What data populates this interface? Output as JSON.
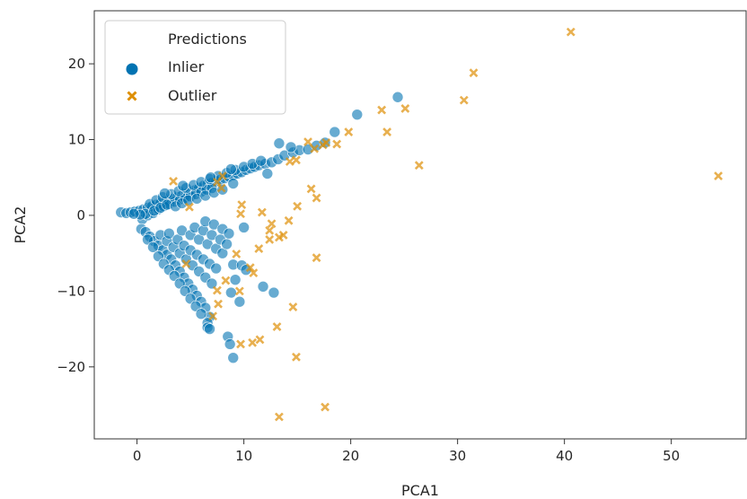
{
  "chart_data": {
    "type": "scatter",
    "xlabel": "PCA1",
    "ylabel": "PCA2",
    "xlim": [
      -4,
      57
    ],
    "ylim": [
      -29.5,
      27
    ],
    "xticks": [
      0,
      10,
      20,
      30,
      40,
      50
    ],
    "yticks": [
      -20,
      -10,
      0,
      10,
      20
    ],
    "grid": false,
    "legend": {
      "title": "Predictions",
      "position": "top-left",
      "entries": [
        "Inlier",
        "Outlier"
      ]
    },
    "series": [
      {
        "name": "Inlier",
        "marker": "circle",
        "color": "#0173b2",
        "points": [
          [
            -1.5,
            0.4
          ],
          [
            -1.0,
            0.3
          ],
          [
            -0.6,
            0.4
          ],
          [
            -0.2,
            0.5
          ],
          [
            0.2,
            0.6
          ],
          [
            0.6,
            0.8
          ],
          [
            1.0,
            1.0
          ],
          [
            1.4,
            1.2
          ],
          [
            1.8,
            1.4
          ],
          [
            2.2,
            1.6
          ],
          [
            2.6,
            1.8
          ],
          [
            3.0,
            2.0
          ],
          [
            3.4,
            2.2
          ],
          [
            3.8,
            2.4
          ],
          [
            4.2,
            2.6
          ],
          [
            4.6,
            2.8
          ],
          [
            5.0,
            3.0
          ],
          [
            5.4,
            3.3
          ],
          [
            5.8,
            3.6
          ],
          [
            6.2,
            3.9
          ],
          [
            6.6,
            4.1
          ],
          [
            7.0,
            4.3
          ],
          [
            7.4,
            4.5
          ],
          [
            7.8,
            4.7
          ],
          [
            8.2,
            4.9
          ],
          [
            8.6,
            5.1
          ],
          [
            9.0,
            5.3
          ],
          [
            9.4,
            5.5
          ],
          [
            9.8,
            5.7
          ],
          [
            10.2,
            6.0
          ],
          [
            10.6,
            6.2
          ],
          [
            11.0,
            6.4
          ],
          [
            11.4,
            6.6
          ],
          [
            12.0,
            6.8
          ],
          [
            12.6,
            7.0
          ],
          [
            13.2,
            7.4
          ],
          [
            13.8,
            7.9
          ],
          [
            14.6,
            8.3
          ],
          [
            15.2,
            8.6
          ],
          [
            16.0,
            8.7
          ],
          [
            16.8,
            9.2
          ],
          [
            17.6,
            9.6
          ],
          [
            18.5,
            11.0
          ],
          [
            20.6,
            13.3
          ],
          [
            24.4,
            15.6
          ],
          [
            13.3,
            9.5
          ],
          [
            14.4,
            9.0
          ],
          [
            12.2,
            5.5
          ],
          [
            0.5,
            -0.5
          ],
          [
            1.0,
            0.0
          ],
          [
            1.5,
            0.3
          ],
          [
            2.0,
            0.8
          ],
          [
            2.5,
            1.2
          ],
          [
            3.0,
            1.5
          ],
          [
            3.5,
            1.8
          ],
          [
            4.0,
            2.1
          ],
          [
            4.5,
            2.3
          ],
          [
            5.0,
            2.5
          ],
          [
            5.5,
            2.8
          ],
          [
            6.0,
            3.1
          ],
          [
            6.5,
            3.4
          ],
          [
            7.0,
            3.6
          ],
          [
            1.2,
            1.5
          ],
          [
            1.8,
            2.0
          ],
          [
            2.4,
            2.4
          ],
          [
            3.2,
            2.8
          ],
          [
            3.9,
            3.2
          ],
          [
            4.6,
            3.6
          ],
          [
            5.3,
            4.0
          ],
          [
            6.0,
            4.4
          ],
          [
            6.8,
            4.8
          ],
          [
            7.6,
            5.2
          ],
          [
            8.4,
            5.6
          ],
          [
            9.2,
            6.0
          ],
          [
            10.0,
            6.4
          ],
          [
            10.8,
            6.8
          ],
          [
            0.8,
            0.2
          ],
          [
            1.6,
            0.6
          ],
          [
            2.2,
            1.0
          ],
          [
            2.8,
            1.4
          ],
          [
            3.6,
            1.2
          ],
          [
            4.2,
            1.6
          ],
          [
            4.8,
            2.0
          ],
          [
            5.6,
            2.2
          ],
          [
            6.4,
            2.6
          ],
          [
            7.2,
            3.0
          ],
          [
            8.0,
            3.4
          ],
          [
            9.0,
            4.2
          ],
          [
            0.4,
            -1.8
          ],
          [
            0.8,
            -2.2
          ],
          [
            1.2,
            -2.8
          ],
          [
            1.6,
            -3.4
          ],
          [
            2.0,
            -4.0
          ],
          [
            2.4,
            -4.6
          ],
          [
            2.8,
            -5.2
          ],
          [
            3.2,
            -5.8
          ],
          [
            3.6,
            -6.6
          ],
          [
            4.0,
            -7.4
          ],
          [
            4.4,
            -8.2
          ],
          [
            4.8,
            -9.0
          ],
          [
            5.2,
            -9.8
          ],
          [
            5.6,
            -10.6
          ],
          [
            6.0,
            -11.4
          ],
          [
            6.4,
            -12.2
          ],
          [
            6.8,
            -13.4
          ],
          [
            1.0,
            -3.2
          ],
          [
            1.5,
            -4.2
          ],
          [
            2.0,
            -5.4
          ],
          [
            2.5,
            -6.4
          ],
          [
            3.0,
            -7.2
          ],
          [
            3.5,
            -8.0
          ],
          [
            4.0,
            -9.0
          ],
          [
            4.5,
            -10.0
          ],
          [
            5.0,
            -11.0
          ],
          [
            5.5,
            -12.0
          ],
          [
            6.0,
            -13.0
          ],
          [
            6.6,
            -14.2
          ],
          [
            2.2,
            -2.6
          ],
          [
            2.8,
            -3.4
          ],
          [
            3.4,
            -4.2
          ],
          [
            4.0,
            -5.0
          ],
          [
            4.6,
            -5.8
          ],
          [
            5.2,
            -6.6
          ],
          [
            5.8,
            -7.4
          ],
          [
            6.4,
            -8.2
          ],
          [
            7.0,
            -9.0
          ],
          [
            3.0,
            -2.4
          ],
          [
            3.8,
            -3.2
          ],
          [
            4.4,
            -4.0
          ],
          [
            5.0,
            -4.6
          ],
          [
            5.6,
            -5.2
          ],
          [
            6.2,
            -5.8
          ],
          [
            6.8,
            -6.4
          ],
          [
            7.4,
            -7.0
          ],
          [
            4.2,
            -2.0
          ],
          [
            5.0,
            -2.6
          ],
          [
            5.8,
            -3.2
          ],
          [
            6.6,
            -3.8
          ],
          [
            7.4,
            -4.4
          ],
          [
            8.0,
            -5.0
          ],
          [
            5.4,
            -1.6
          ],
          [
            6.2,
            -2.0
          ],
          [
            7.0,
            -2.6
          ],
          [
            7.8,
            -3.2
          ],
          [
            8.4,
            -3.8
          ],
          [
            6.4,
            -0.8
          ],
          [
            7.2,
            -1.2
          ],
          [
            8.0,
            -1.8
          ],
          [
            8.6,
            -2.4
          ],
          [
            6.6,
            -14.8
          ],
          [
            6.8,
            -15.0
          ],
          [
            8.5,
            -16.0
          ],
          [
            8.7,
            -17.0
          ],
          [
            9.0,
            -18.8
          ],
          [
            9.2,
            -8.5
          ],
          [
            9.0,
            -6.5
          ],
          [
            9.6,
            -11.4
          ],
          [
            10.0,
            -1.6
          ],
          [
            9.8,
            -6.6
          ],
          [
            10.2,
            -7.2
          ],
          [
            11.8,
            -9.4
          ],
          [
            12.8,
            -10.2
          ],
          [
            8.8,
            -10.2
          ],
          [
            0.3,
            0.1
          ],
          [
            -0.3,
            0.2
          ],
          [
            2.6,
            2.9
          ],
          [
            4.3,
            3.9
          ],
          [
            6.9,
            5.0
          ],
          [
            8.8,
            6.1
          ],
          [
            11.6,
            7.2
          ]
        ]
      },
      {
        "name": "Outlier",
        "marker": "x",
        "color": "#de8f05",
        "points": [
          [
            40.6,
            24.2
          ],
          [
            31.5,
            18.8
          ],
          [
            30.6,
            15.2
          ],
          [
            25.1,
            14.1
          ],
          [
            22.9,
            13.9
          ],
          [
            23.4,
            11.0
          ],
          [
            26.4,
            6.6
          ],
          [
            54.4,
            5.2
          ],
          [
            19.8,
            11.0
          ],
          [
            18.7,
            9.4
          ],
          [
            17.7,
            9.6
          ],
          [
            17.4,
            9.3
          ],
          [
            16.6,
            8.8
          ],
          [
            16.0,
            9.7
          ],
          [
            14.9,
            7.3
          ],
          [
            14.3,
            7.1
          ],
          [
            8.0,
            5.2
          ],
          [
            7.5,
            4.4
          ],
          [
            7.9,
            3.6
          ],
          [
            9.8,
            1.4
          ],
          [
            9.7,
            0.2
          ],
          [
            11.7,
            0.4
          ],
          [
            12.6,
            -1.1
          ],
          [
            12.4,
            -2.0
          ],
          [
            14.2,
            -0.7
          ],
          [
            15.0,
            1.2
          ],
          [
            16.3,
            3.5
          ],
          [
            16.8,
            2.3
          ],
          [
            13.7,
            -2.6
          ],
          [
            13.3,
            -2.9
          ],
          [
            11.4,
            -4.4
          ],
          [
            12.4,
            -3.2
          ],
          [
            9.3,
            -5.1
          ],
          [
            10.6,
            -6.9
          ],
          [
            10.9,
            -7.6
          ],
          [
            9.6,
            -10.0
          ],
          [
            7.5,
            -9.9
          ],
          [
            8.3,
            -8.6
          ],
          [
            7.6,
            -11.7
          ],
          [
            7.1,
            -13.3
          ],
          [
            16.8,
            -5.6
          ],
          [
            14.6,
            -12.1
          ],
          [
            13.1,
            -14.7
          ],
          [
            11.5,
            -16.4
          ],
          [
            10.8,
            -16.8
          ],
          [
            9.7,
            -17.0
          ],
          [
            14.9,
            -18.7
          ],
          [
            17.6,
            -25.3
          ],
          [
            13.3,
            -26.6
          ],
          [
            4.6,
            -6.4
          ],
          [
            4.9,
            1.1
          ],
          [
            3.4,
            4.5
          ]
        ]
      }
    ]
  }
}
